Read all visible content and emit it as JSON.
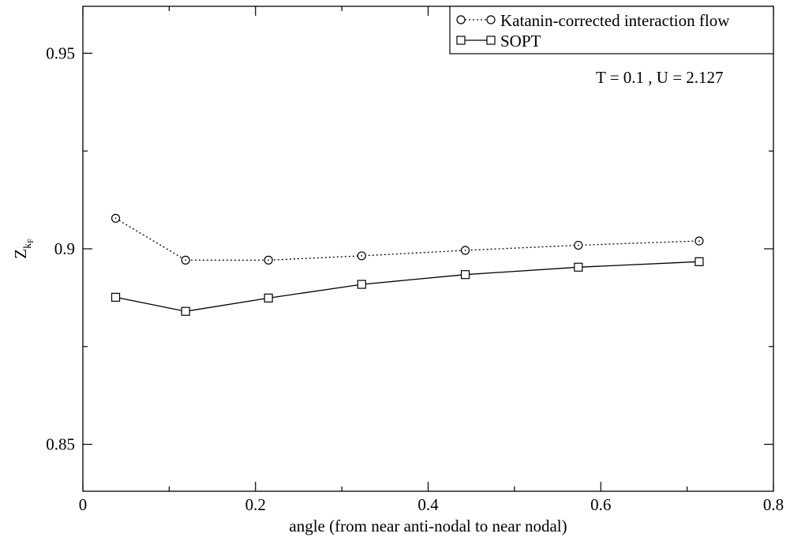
{
  "chart_data": {
    "type": "line",
    "xlabel": "angle (from near anti-nodal to near nodal)",
    "ylabel": "Z",
    "ylabel_subscript": "k",
    "ylabel_subsubscript": "F",
    "xlim": [
      0,
      0.8
    ],
    "ylim": [
      0.838,
      0.962
    ],
    "xticks": [
      0,
      0.2,
      0.4,
      0.6,
      0.8
    ],
    "xtick_labels": [
      "0",
      "0.2",
      "0.4",
      "0.6",
      "0.8"
    ],
    "xminor": [
      0.1,
      0.3,
      0.5,
      0.7
    ],
    "yticks": [
      0.85,
      0.9,
      0.95
    ],
    "ytick_labels": [
      "0.85",
      "0.9",
      "0.95"
    ],
    "yminor": [
      0.875,
      0.925
    ],
    "grid": false,
    "legend_position": "top-right",
    "annotation": "T = 0.1 , U = 2.127",
    "series": [
      {
        "name": "Katanin-corrected interaction flow",
        "marker": "circle",
        "line": "dotted",
        "x": [
          0.038,
          0.119,
          0.215,
          0.323,
          0.443,
          0.574,
          0.714
        ],
        "y": [
          0.9078,
          0.8971,
          0.8971,
          0.8982,
          0.8996,
          0.9009,
          0.902
        ]
      },
      {
        "name": "SOPT",
        "marker": "square",
        "line": "solid",
        "x": [
          0.038,
          0.119,
          0.215,
          0.323,
          0.443,
          0.574,
          0.714
        ],
        "y": [
          0.8876,
          0.884,
          0.8874,
          0.8909,
          0.8934,
          0.8953,
          0.8967
        ]
      }
    ]
  }
}
